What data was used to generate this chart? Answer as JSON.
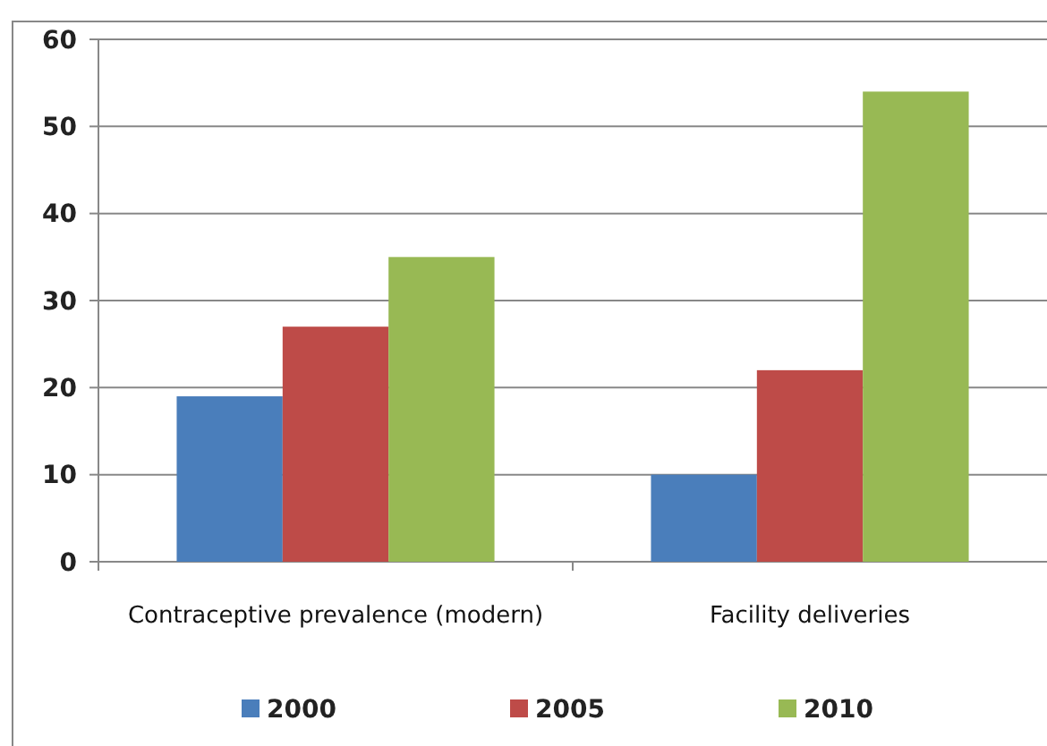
{
  "chart_data": {
    "type": "bar",
    "categories": [
      "Contraceptive prevalence (modern)",
      "Facility deliveries"
    ],
    "series": [
      {
        "name": "2000",
        "color": "#4a7ebb",
        "values": [
          19,
          10
        ]
      },
      {
        "name": "2005",
        "color": "#be4b48",
        "values": [
          27,
          22
        ]
      },
      {
        "name": "2010",
        "color": "#98b954",
        "values": [
          35,
          54
        ]
      }
    ],
    "ylim": [
      0,
      60
    ],
    "yticks": [
      0,
      10,
      20,
      30,
      40,
      50,
      60
    ],
    "grid": "y",
    "legend": "bottom"
  }
}
